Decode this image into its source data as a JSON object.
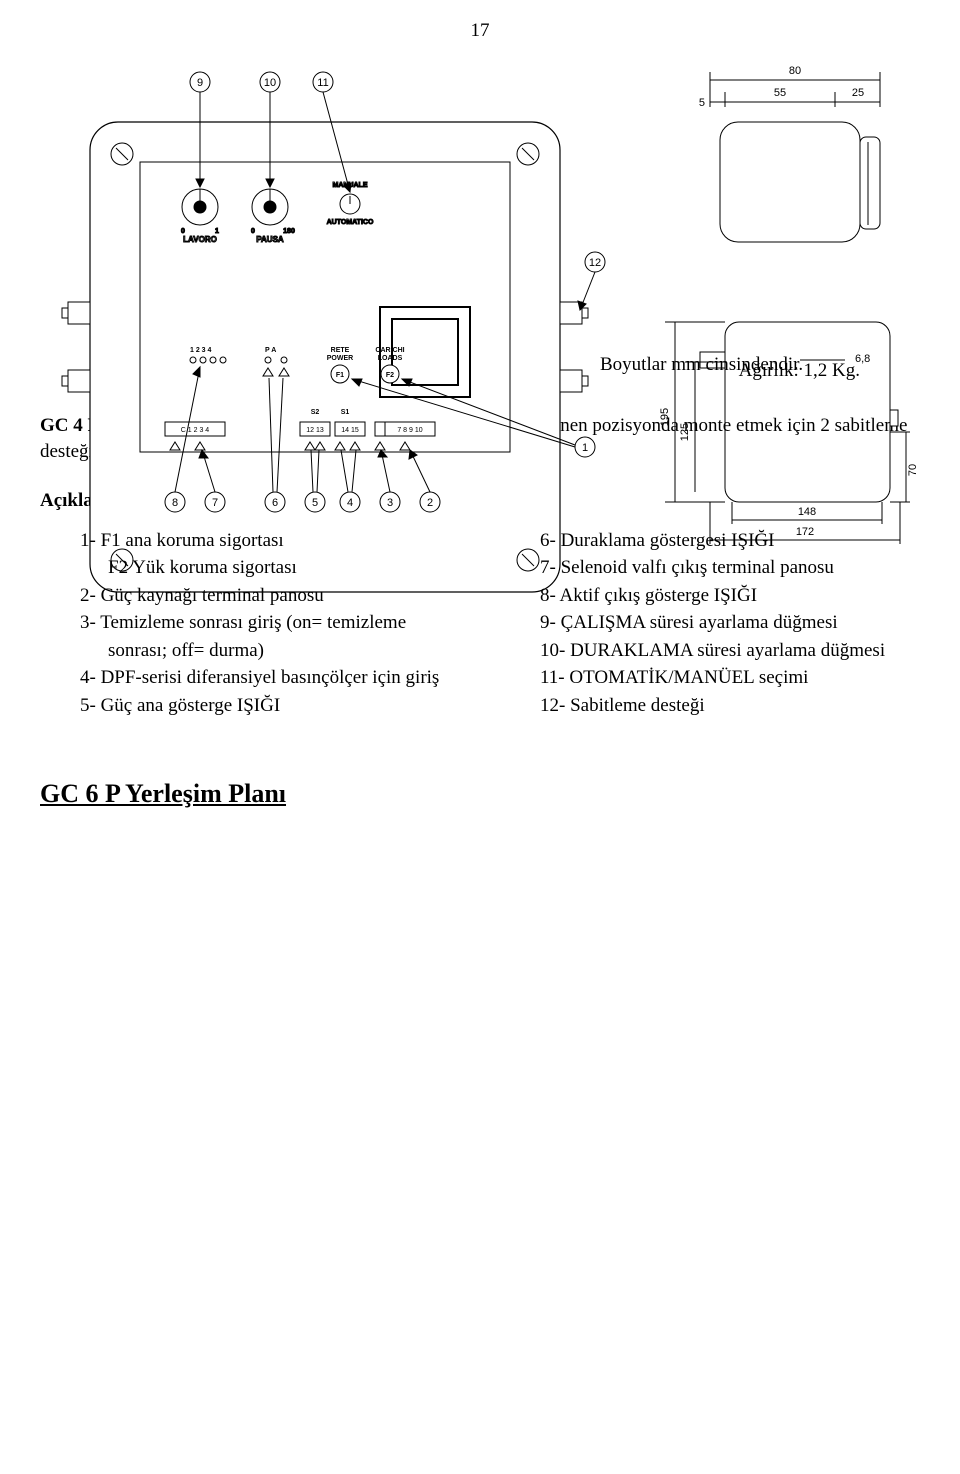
{
  "page_number": "17",
  "diagram": {
    "type": "technical-drawing",
    "callouts_top": [
      "9",
      "10",
      "11"
    ],
    "callouts_bottom": [
      "8",
      "7",
      "6",
      "5",
      "4",
      "3",
      "2"
    ],
    "callout_right_upper": "12",
    "callout_right_lower": "1",
    "knob_labels": {
      "lavoro": "LAVORO",
      "lavoro_left": "0",
      "lavoro_right": "1",
      "pausa": "PAUSA",
      "pausa_left": "0",
      "pausa_right": "180",
      "manuale": "MANUALE",
      "automatico": "AUTOMATICO"
    },
    "inner_labels": {
      "leds_1234": "1 2 3 4",
      "leds_pa": "P  A",
      "rete": "RETE",
      "power": "POWER",
      "carichi": "CARICHI",
      "loads": "LOADS",
      "f1": "F1",
      "f2": "F2",
      "s2": "S2",
      "s1": "S1",
      "term_c": "C 1 2 3 4",
      "term_1213": "12 13",
      "term_1415": "14 15",
      "term_789": "7 8 9 10"
    },
    "dimensions": {
      "top_total": "80",
      "top_left_gap": "5",
      "top_mid": "55",
      "top_right_gap": "25",
      "side_195": "195",
      "side_125": "125",
      "side_70": "70",
      "side_68": "6,8",
      "bottom_148": "148",
      "bottom_172": "172"
    },
    "colors": {
      "line": "#000000",
      "bg": "#ffffff"
    },
    "line_width": 1
  },
  "dimension_note": "Boyutlar mm cinsindendir.",
  "weight": "Ağırlık: 1,2 Kg.",
  "intro_bold": "GC 4 P:",
  "intro_rest": " cihazla birlikte, çizimlerde gösterilen dört pozisyondan istenen pozisyonda monte etmek için 2 sabitleme desteği de verilir.",
  "explanations_heading": "Açıklamalar:",
  "left_items": [
    {
      "num": "1-",
      "text": "F1 ana koruma sigortası",
      "sub": "F2 Yük koruma sigortası"
    },
    {
      "num": "2-",
      "text": "Güç kaynağı terminal panosu"
    },
    {
      "num": "3-",
      "text": "Temizleme sonrası giriş (on= temizleme sonrası; off= durma)"
    },
    {
      "num": "4-",
      "text": "DPF-serisi diferansiyel basınçölçer için giriş"
    },
    {
      "num": "5-",
      "text": "Güç ana gösterge IŞIĞI"
    }
  ],
  "right_items": [
    {
      "num": "6-",
      "text": "Duraklama göstergesi IŞIĞI"
    },
    {
      "num": "7-",
      "text": "Selenoid valfı çıkış terminal panosu"
    },
    {
      "num": "8-",
      "text": "Aktif çıkış gösterge IŞIĞI"
    },
    {
      "num": "9-",
      "text": "ÇALIŞMA süresi ayarlama düğmesi"
    },
    {
      "num": "10-",
      "text": "DURAKLAMA süresi ayarlama düğmesi"
    },
    {
      "num": "11-",
      "text": "OTOMATİK/MANÜEL seçimi"
    },
    {
      "num": "12-",
      "text": "Sabitleme desteği"
    }
  ],
  "section_title": "GC 6 P Yerleşim Planı"
}
